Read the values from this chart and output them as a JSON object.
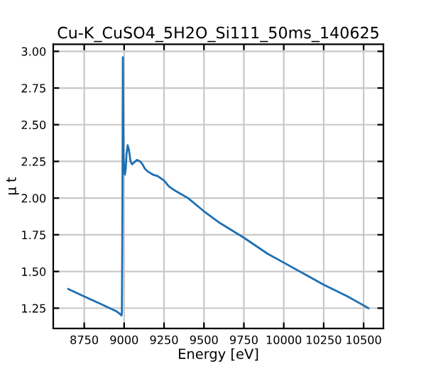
{
  "chart_data": {
    "type": "line",
    "title": "Cu-K_CuSO4_5H2O_Si111_50ms_140625",
    "xlabel": "Energy [eV]",
    "ylabel": "μ t",
    "x": [
      8650,
      8750,
      8850,
      8950,
      8975,
      8983,
      8986,
      8989,
      8992,
      8996,
      9000,
      9005,
      9010,
      9015,
      9022,
      9030,
      9040,
      9050,
      9060,
      9080,
      9100,
      9115,
      9130,
      9150,
      9180,
      9210,
      9250,
      9280,
      9320,
      9400,
      9500,
      9600,
      9750,
      9900,
      10000,
      10150,
      10250,
      10400,
      10530
    ],
    "series": [
      {
        "color": "#1f6fb2",
        "values": [
          1.38,
          1.33,
          1.28,
          1.23,
          1.21,
          1.2,
          1.22,
          1.8,
          2.96,
          2.3,
          2.18,
          2.16,
          2.2,
          2.3,
          2.36,
          2.33,
          2.25,
          2.23,
          2.24,
          2.26,
          2.25,
          2.23,
          2.2,
          2.18,
          2.16,
          2.15,
          2.12,
          2.08,
          2.05,
          2.0,
          1.91,
          1.83,
          1.73,
          1.62,
          1.56,
          1.47,
          1.41,
          1.33,
          1.25
        ]
      }
    ],
    "xlim": [
      8556,
      10624
    ],
    "ylim": [
      1.112,
      3.048
    ],
    "xticks": [
      8750,
      9000,
      9250,
      9500,
      9750,
      10000,
      10250,
      10500
    ],
    "yticks": [
      {
        "value": 1.25,
        "label": "1.25"
      },
      {
        "value": 1.5,
        "label": "1.50"
      },
      {
        "value": 1.75,
        "label": "1.75"
      },
      {
        "value": 2.0,
        "label": "2.00"
      },
      {
        "value": 2.25,
        "label": "2.25"
      },
      {
        "value": 2.5,
        "label": "2.50"
      },
      {
        "value": 2.75,
        "label": "2.75"
      },
      {
        "value": 3.0,
        "label": "3.00"
      }
    ],
    "grid": true,
    "marker": "none",
    "line_style": "solid"
  }
}
